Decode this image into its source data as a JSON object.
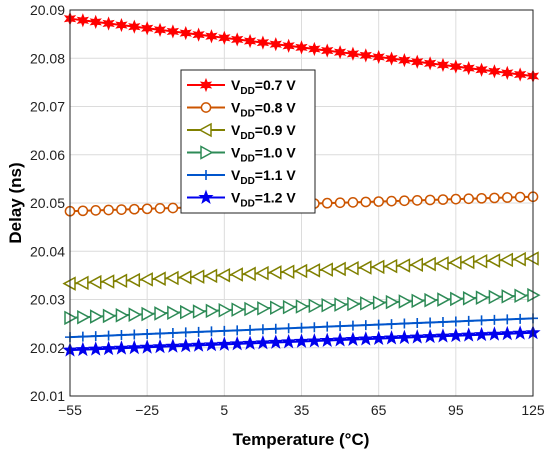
{
  "chart_data": {
    "type": "line",
    "xlabel": "Temperature (°C)",
    "ylabel": "Delay (ns)",
    "xlim": [
      -55,
      125
    ],
    "ylim": [
      20.01,
      20.09
    ],
    "xticks": [
      -55,
      -25,
      5,
      35,
      65,
      95,
      125
    ],
    "xtick_labels": [
      "−55",
      "−25",
      "5",
      "35",
      "65",
      "95",
      "125"
    ],
    "yticks": [
      20.01,
      20.02,
      20.03,
      20.04,
      20.05,
      20.06,
      20.07,
      20.08,
      20.09
    ],
    "ytick_labels": [
      "20.01",
      "20.02",
      "20.03",
      "20.04",
      "20.05",
      "20.06",
      "20.07",
      "20.08",
      "20.09"
    ],
    "grid": true,
    "legend_position": "upper-left-center",
    "x": [
      -55,
      -50,
      -45,
      -40,
      -35,
      -30,
      -25,
      -20,
      -15,
      -10,
      -5,
      0,
      5,
      10,
      15,
      20,
      25,
      30,
      35,
      40,
      45,
      50,
      55,
      60,
      65,
      70,
      75,
      80,
      85,
      90,
      95,
      100,
      105,
      110,
      115,
      120,
      125
    ],
    "series": [
      {
        "name": "V_DD=0.7 V",
        "label_main": "V",
        "label_sub": "DD",
        "label_rest": "=0.7 V",
        "color": "#ff0000",
        "marker": "star6",
        "y_start": 20.0882,
        "y_end": 20.0763
      },
      {
        "name": "V_DD=0.8 V",
        "label_main": "V",
        "label_sub": "DD",
        "label_rest": "=0.8 V",
        "color": "#cc5500",
        "marker": "circle",
        "y_start": 20.0483,
        "y_end": 20.0513
      },
      {
        "name": "V_DD=0.9 V",
        "label_main": "V",
        "label_sub": "DD",
        "label_rest": "=0.9 V",
        "color": "#808000",
        "marker": "triangle-left",
        "y_start": 20.0333,
        "y_end": 20.0385
      },
      {
        "name": "V_DD=1.0 V",
        "label_main": "V",
        "label_sub": "DD",
        "label_rest": "=1.0 V",
        "color": "#2e8b57",
        "marker": "triangle-right",
        "y_start": 20.0262,
        "y_end": 20.0309
      },
      {
        "name": "V_DD=1.1 V",
        "label_main": "V",
        "label_sub": "DD",
        "label_rest": "=1.1 V",
        "color": "#0055cc",
        "marker": "plus",
        "y_start": 20.0222,
        "y_end": 20.0261
      },
      {
        "name": "V_DD=1.2 V",
        "label_main": "V",
        "label_sub": "DD",
        "label_rest": "=1.2 V",
        "color": "#0000ee",
        "marker": "star5",
        "y_start": 20.0195,
        "y_end": 20.0231
      }
    ]
  }
}
